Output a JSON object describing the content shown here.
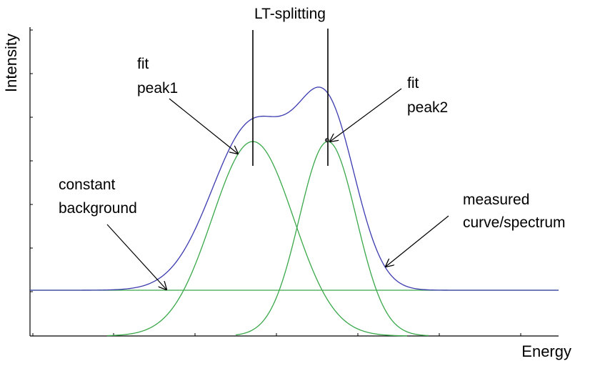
{
  "title": "LT-splitting",
  "axes": {
    "x_label": "Energy",
    "y_label": "Intensity"
  },
  "labels": {
    "peak1": [
      "fit",
      "peak1"
    ],
    "peak2": [
      "fit",
      "peak2"
    ],
    "background": [
      "constant",
      "background"
    ],
    "measured": [
      "measured",
      "curve/spectrum"
    ]
  },
  "colors": {
    "measured_curve": "#3b3bb0",
    "fit_peaks": "#3aa84a",
    "background_line": "#3aa84a",
    "axis": "#000000"
  }
}
